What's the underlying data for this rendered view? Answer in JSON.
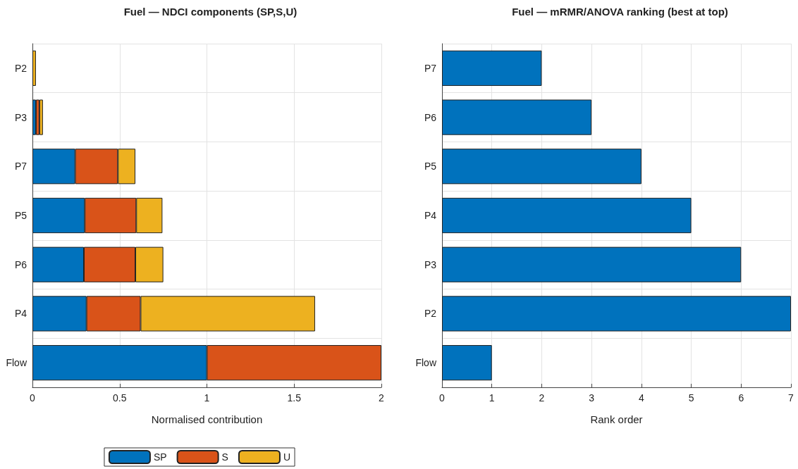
{
  "chart_data": [
    {
      "type": "bar",
      "title": "Fuel — NDCI components (SP,S,U)",
      "xlabel": "Normalised contribution",
      "orientation": "horizontal",
      "stacked": true,
      "categories": [
        "P2",
        "P3",
        "P7",
        "P5",
        "P6",
        "P4",
        "Flow"
      ],
      "series": [
        {
          "name": "SP",
          "color": "#0072bd",
          "values": [
            0,
            0.02,
            0.245,
            0.3,
            0.295,
            0.31,
            1
          ]
        },
        {
          "name": "S",
          "color": "#d95319",
          "values": [
            0,
            0.02,
            0.245,
            0.295,
            0.295,
            0.31,
            1
          ]
        },
        {
          "name": "U",
          "color": "#edb120",
          "values": [
            0.02,
            0.02,
            0.1,
            0.15,
            0.16,
            1.0,
            0
          ]
        }
      ],
      "xlim": [
        0,
        2
      ],
      "xticks": [
        0,
        0.5,
        1,
        1.5,
        2
      ],
      "grid": true,
      "legend": "bottom"
    },
    {
      "type": "bar",
      "title": "Fuel — mRMR/ANOVA ranking (best at top)",
      "xlabel": "Rank order",
      "orientation": "horizontal",
      "categories": [
        "P7",
        "P6",
        "P5",
        "P4",
        "P3",
        "P2",
        "Flow"
      ],
      "series": [
        {
          "color": "#0072bd",
          "values": [
            2,
            3,
            4,
            5,
            6,
            7,
            1
          ]
        }
      ],
      "xlim": [
        0,
        7
      ],
      "xticks": [
        0,
        1,
        2,
        3,
        4,
        5,
        6,
        7
      ],
      "grid": true
    }
  ]
}
